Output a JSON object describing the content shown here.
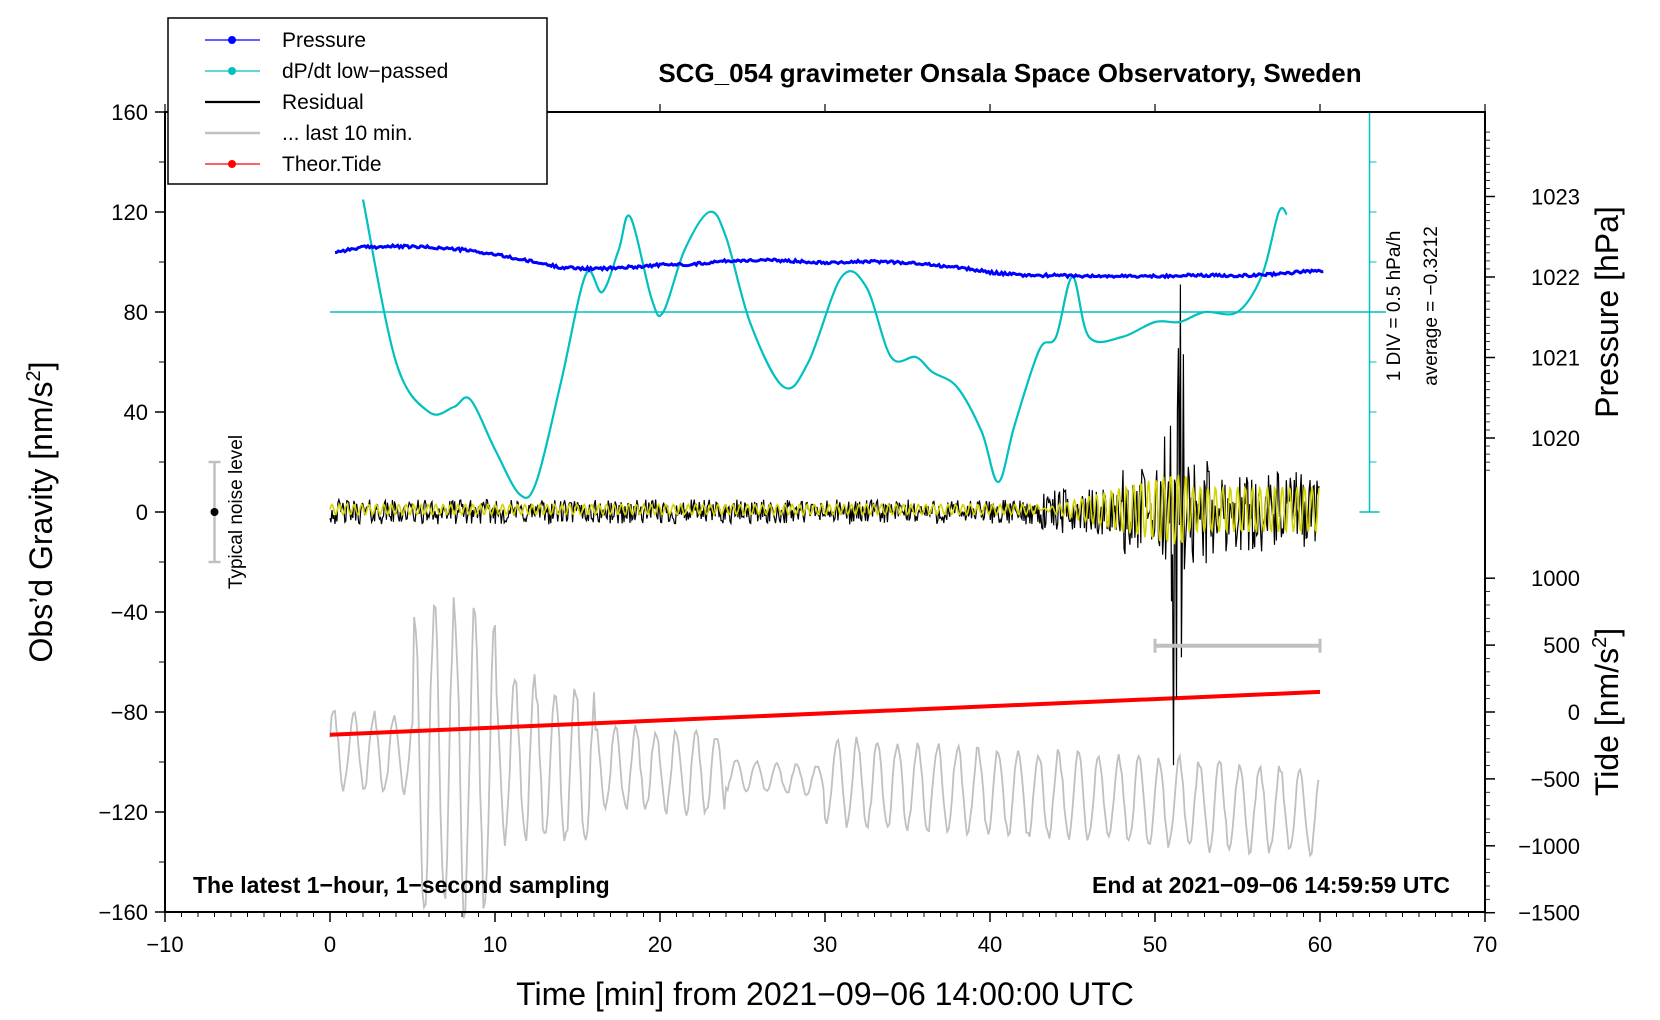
{
  "chart_data": {
    "type": "line",
    "title": "SCG_054 gravimeter Onsala Space Observatory, Sweden",
    "xlabel": "Time [min] from 2021−09−06 14:00:00 UTC",
    "ylabel_left": "Obs’d Gravity [nm/s2]",
    "ylabel_left_main": "Obs’d Gravity [nm/s",
    "ylabel_left_sup": "2",
    "ylabel_left_close": "]",
    "ylabel_right_upper": "Pressure [hPa]",
    "ylabel_right_lower": "Tide [nm/s2]",
    "ylabel_right_lower_main": "Tide [nm/s",
    "ylabel_right_lower_sup": "2",
    "ylabel_right_lower_close": "]",
    "xlim": [
      -10,
      70
    ],
    "ylim": [
      -160,
      160
    ],
    "pressure_ylim": [
      1019,
      1024
    ],
    "tide_ylim": [
      -1500,
      1000
    ],
    "x_ticks": [
      "−10",
      "0",
      "10",
      "20",
      "30",
      "40",
      "50",
      "60",
      "70"
    ],
    "x_tick_values": [
      -10,
      0,
      10,
      20,
      30,
      40,
      50,
      60,
      70
    ],
    "y_ticks": [
      "160",
      "120",
      "80",
      "40",
      "0",
      "−40",
      "−80",
      "−120",
      "−160"
    ],
    "y_tick_values": [
      160,
      120,
      80,
      40,
      0,
      -40,
      -80,
      -120,
      -160
    ],
    "pressure_ticks": [
      "1023",
      "1022",
      "1021",
      "1020"
    ],
    "pressure_tick_values": [
      1023,
      1022,
      1021,
      1020
    ],
    "tide_ticks": [
      "1000",
      "500",
      "0",
      "−500",
      "−1000",
      "−1500"
    ],
    "tide_tick_values": [
      1000,
      500,
      0,
      -500,
      -1000,
      -1500
    ],
    "legend": [
      {
        "label": "Pressure",
        "color": "#0000ff",
        "marker": true
      },
      {
        "label": "dP/dt low−passed",
        "color": "#00c0c0",
        "marker": true
      },
      {
        "label": "Residual",
        "color": "#000000",
        "marker": false
      },
      {
        "label": "... last 10 min.",
        "color": "#c0c0c0",
        "marker": false
      },
      {
        "label": "Theor.Tide",
        "color": "#ff0000",
        "marker": true
      }
    ],
    "annotations": {
      "bottom_left": "The latest 1−hour, 1−second sampling",
      "bottom_right": "End at 2021−09−06 14:59:59 UTC",
      "scale_div": "1 DIV = 0.5 hPa/h",
      "scale_avg": "average = −0.3212",
      "noise": "Typical noise level"
    },
    "noise_bar": {
      "x": -7,
      "y_center": 0,
      "half_range": 20
    },
    "last10_bar": {
      "x_start": 50,
      "x_end": 60,
      "y": -53.5
    },
    "dpdt_reference_y": 80,
    "dpdt_scale_axis": {
      "x": 63,
      "y_bottom": 0,
      "y_top": 160
    },
    "series": [
      {
        "name": "Pressure",
        "axis": "pressure",
        "color": "#0000ff",
        "x": [
          0,
          2,
          4,
          6,
          8,
          10,
          12,
          14,
          16,
          18,
          20,
          22,
          24,
          26,
          28,
          30,
          32,
          34,
          36,
          38,
          40,
          42,
          44,
          46,
          48,
          50,
          52,
          54,
          56,
          58,
          60
        ],
        "values": [
          1022.3,
          1022.37,
          1022.38,
          1022.37,
          1022.34,
          1022.28,
          1022.2,
          1022.12,
          1022.1,
          1022.12,
          1022.15,
          1022.16,
          1022.2,
          1022.21,
          1022.2,
          1022.18,
          1022.19,
          1022.19,
          1022.16,
          1022.12,
          1022.06,
          1022.02,
          1022.02,
          1022.01,
          1022.01,
          1022.01,
          1022.02,
          1022.02,
          1022.02,
          1022.05,
          1022.08
        ]
      },
      {
        "name": "dP/dt low−passed",
        "axis": "gravity",
        "color": "#00c0c0",
        "x": [
          2,
          4,
          6,
          7.5,
          8.5,
          10,
          11.5,
          12.5,
          14,
          15.5,
          16.5,
          17.5,
          18.2,
          19.5,
          20.2,
          21.5,
          23,
          24,
          25.5,
          27.5,
          29,
          31,
          32.5,
          34,
          35.5,
          36.5,
          38,
          39.5,
          40.5,
          41.5,
          43,
          44,
          45,
          46,
          48,
          50,
          51.5,
          53,
          55,
          56.5,
          57.5,
          58
        ],
        "values": [
          125,
          60,
          40,
          42,
          45,
          25,
          7,
          12,
          52,
          95,
          88,
          105,
          118,
          85,
          80,
          105,
          120,
          110,
          75,
          50,
          60,
          94,
          90,
          62,
          62,
          56,
          50,
          32,
          12,
          35,
          65,
          70,
          94,
          70,
          70,
          76,
          76,
          80,
          80,
          95,
          120,
          119
        ]
      },
      {
        "name": "Residual",
        "axis": "gravity",
        "color": "#000000",
        "x": [
          0,
          60
        ],
        "values": [
          0,
          0
        ]
      },
      {
        "name": "... last 10 min.",
        "axis": "gravity",
        "color": "#c0c0c0",
        "x": [
          0,
          60
        ],
        "values": [
          -95,
          -120
        ]
      },
      {
        "name": "Theor.Tide",
        "axis": "tide",
        "color": "#ff0000",
        "x": [
          0,
          60
        ],
        "values": [
          -170,
          150
        ]
      }
    ]
  }
}
